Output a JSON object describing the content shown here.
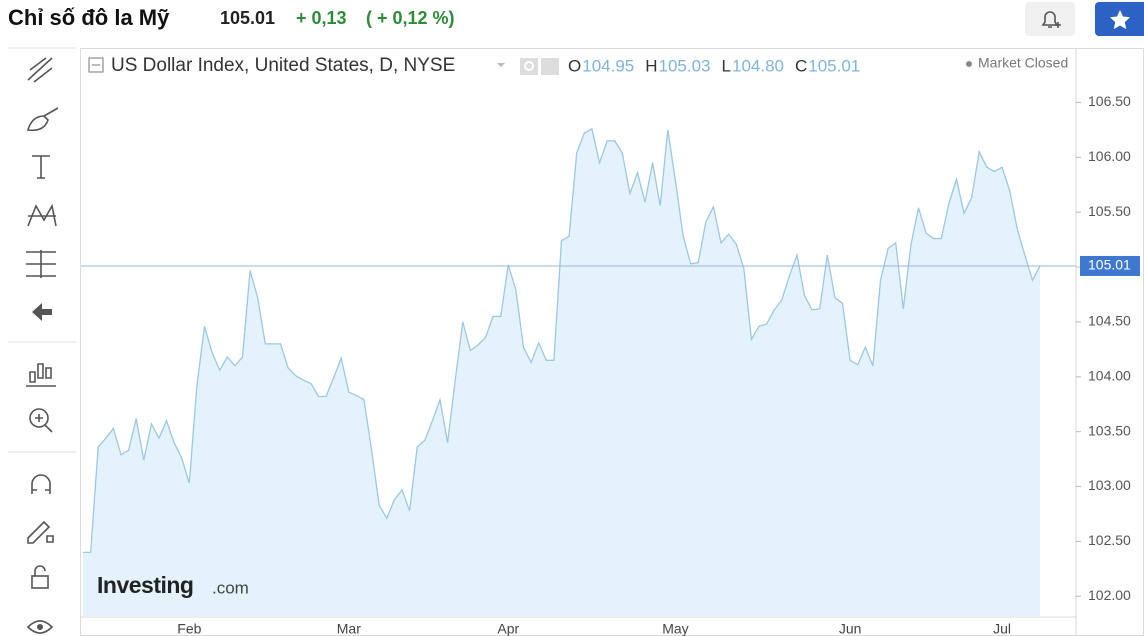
{
  "header": {
    "title": "Chỉ số đô la Mỹ",
    "price": "105.01",
    "change": "+ 0,13",
    "change_pct": "( + 0,12 %)"
  },
  "chart_data": {
    "type": "area",
    "title": "US Dollar Index, United States, D, NYSE",
    "ohlc": [
      {
        "key": "O",
        "value": "104.95"
      },
      {
        "key": "H",
        "value": "105.03"
      },
      {
        "key": "L",
        "value": "104.80"
      },
      {
        "key": "C",
        "value": "105.01"
      }
    ],
    "status": "Market Closed",
    "watermark": [
      "Investing",
      ".com"
    ],
    "color": "#9ec7e3",
    "fill": "#e3f2fb",
    "categories": [
      null,
      null,
      null,
      null,
      null,
      null,
      null,
      null,
      null,
      null,
      null,
      null,
      null,
      null,
      "Feb",
      null,
      null,
      null,
      null,
      null,
      null,
      null,
      null,
      null,
      null,
      null,
      null,
      null,
      null,
      null,
      null,
      null,
      null,
      null,
      null,
      "Mar",
      null,
      null,
      null,
      null,
      null,
      null,
      null,
      null,
      null,
      null,
      null,
      null,
      null,
      null,
      null,
      null,
      null,
      null,
      null,
      null,
      "Apr",
      null,
      null,
      null,
      null,
      null,
      null,
      null,
      null,
      null,
      null,
      null,
      null,
      null,
      null,
      null,
      null,
      null,
      null,
      null,
      null,
      null,
      "May",
      null,
      null,
      null,
      null,
      null,
      null,
      null,
      null,
      null,
      null,
      null,
      null,
      null,
      null,
      null,
      null,
      null,
      null,
      null,
      null,
      null,
      null,
      "Jun",
      null,
      null,
      null,
      null,
      null,
      null,
      null,
      null,
      null,
      null,
      null,
      null,
      null,
      null,
      null,
      null,
      null,
      null,
      null,
      "Jul",
      null,
      null,
      null,
      null,
      null
    ],
    "values": [
      102.4,
      102.4,
      103.36,
      103.44,
      103.53,
      103.29,
      103.33,
      103.62,
      103.24,
      103.57,
      103.44,
      103.6,
      103.4,
      103.26,
      103.03,
      103.92,
      104.46,
      104.22,
      104.06,
      104.18,
      104.1,
      104.18,
      104.97,
      104.72,
      104.3,
      104.3,
      104.3,
      104.08,
      104.01,
      103.97,
      103.94,
      103.82,
      103.82,
      103.99,
      104.17,
      103.86,
      103.83,
      103.79,
      103.33,
      102.83,
      102.71,
      102.88,
      102.97,
      102.78,
      103.36,
      103.42,
      103.6,
      103.79,
      103.4,
      103.97,
      104.5,
      104.24,
      104.29,
      104.36,
      104.55,
      104.55,
      105.02,
      104.79,
      104.27,
      104.13,
      104.31,
      104.15,
      104.15,
      105.24,
      105.28,
      106.04,
      106.22,
      106.26,
      105.95,
      106.15,
      106.15,
      106.04,
      105.67,
      105.86,
      105.59,
      105.95,
      105.56,
      106.25,
      105.79,
      105.29,
      105.03,
      105.04,
      105.41,
      105.55,
      105.22,
      105.3,
      105.21,
      104.99,
      104.34,
      104.46,
      104.48,
      104.61,
      104.7,
      104.92,
      105.11,
      104.74,
      104.61,
      104.62,
      105.11,
      104.72,
      104.67,
      104.15,
      104.11,
      104.27,
      104.1,
      104.88,
      105.17,
      105.22,
      104.62,
      105.2,
      105.54,
      105.31,
      105.26,
      105.26,
      105.58,
      105.8,
      105.49,
      105.63,
      106.05,
      105.91,
      105.87,
      105.91,
      105.7,
      105.35,
      105.11,
      104.88,
      105.01
    ],
    "ylim": [
      101.82,
      106.96
    ],
    "yticks": [
      {
        "value": 102,
        "label": "102.00"
      },
      {
        "value": 102.5,
        "label": "102.50"
      },
      {
        "value": 103,
        "label": "103.00"
      },
      {
        "value": 103.5,
        "label": "103.50"
      },
      {
        "value": 104,
        "label": "104.00"
      },
      {
        "value": 104.5,
        "label": "104.50"
      },
      {
        "value": 105,
        "label": "105.00"
      },
      {
        "value": 105.5,
        "label": "105.50"
      },
      {
        "value": 106,
        "label": "106.00"
      },
      {
        "value": 106.5,
        "label": "106.50"
      }
    ],
    "price_line": {
      "value": 105.01,
      "label": "105.01"
    }
  }
}
